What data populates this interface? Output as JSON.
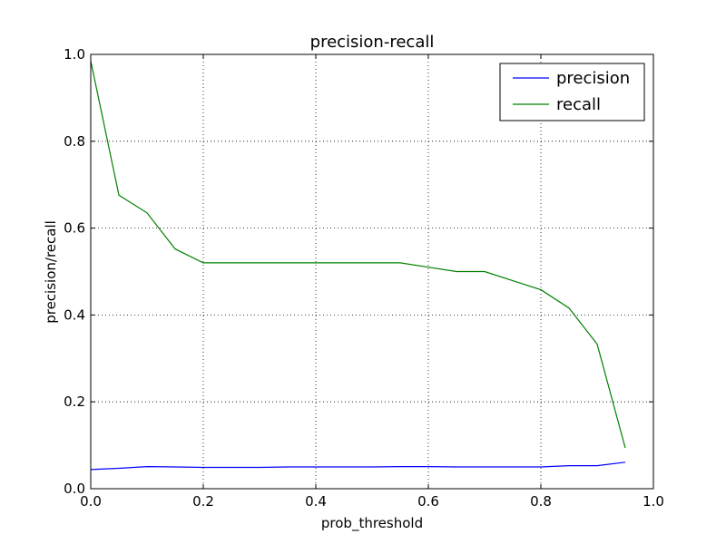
{
  "chart_data": {
    "type": "line",
    "title": "precision-recall",
    "xlabel": "prob_threshold",
    "ylabel": "precision/recall",
    "xlim": [
      0.0,
      1.0
    ],
    "ylim": [
      0.0,
      1.0
    ],
    "xticks": [
      "0.0",
      "0.2",
      "0.4",
      "0.6",
      "0.8",
      "1.0"
    ],
    "yticks": [
      "0.0",
      "0.2",
      "0.4",
      "0.6",
      "0.8",
      "1.0"
    ],
    "grid": true,
    "legend_position": "top-right",
    "x": [
      0.0,
      0.05,
      0.1,
      0.15,
      0.2,
      0.25,
      0.3,
      0.35,
      0.4,
      0.45,
      0.5,
      0.55,
      0.6,
      0.65,
      0.7,
      0.75,
      0.8,
      0.85,
      0.9,
      0.95
    ],
    "series": [
      {
        "name": "precision",
        "color": "#0000ff",
        "values": [
          0.044,
          0.047,
          0.051,
          0.05,
          0.049,
          0.049,
          0.049,
          0.05,
          0.05,
          0.05,
          0.05,
          0.051,
          0.051,
          0.05,
          0.05,
          0.05,
          0.05,
          0.053,
          0.053,
          0.061
        ]
      },
      {
        "name": "recall",
        "color": "#008000",
        "values": [
          0.985,
          0.676,
          0.635,
          0.552,
          0.52,
          0.52,
          0.52,
          0.52,
          0.52,
          0.52,
          0.52,
          0.52,
          0.51,
          0.5,
          0.5,
          0.479,
          0.458,
          0.416,
          0.333,
          0.094
        ]
      }
    ]
  }
}
